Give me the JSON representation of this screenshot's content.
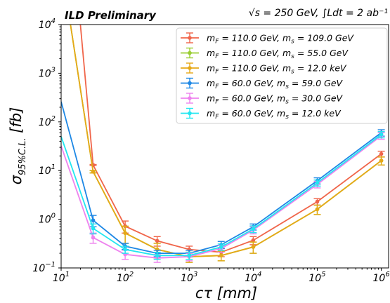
{
  "chart_data": {
    "type": "line",
    "title_left": "ILD Preliminary",
    "title_right": "√s = 250 GeV, ∫Ldt = 2 ab⁻¹",
    "xlabel": "cτ [mm]",
    "ylabel": "σ95%C.L. [fb]",
    "xscale": "log",
    "yscale": "log",
    "xlim": [
      10,
      1300000
    ],
    "ylim": [
      0.1,
      10000
    ],
    "x_ticks": [
      {
        "value": 10,
        "base": "10",
        "exp": "1"
      },
      {
        "value": 100,
        "base": "10",
        "exp": "2"
      },
      {
        "value": 1000,
        "base": "10",
        "exp": "3"
      },
      {
        "value": 10000,
        "base": "10",
        "exp": "4"
      },
      {
        "value": 100000,
        "base": "10",
        "exp": "5"
      },
      {
        "value": 1000000,
        "base": "10",
        "exp": "6"
      }
    ],
    "y_ticks": [
      {
        "value": 0.1,
        "base": "10",
        "exp": "−1"
      },
      {
        "value": 1,
        "base": "10",
        "exp": "0"
      },
      {
        "value": 10,
        "base": "10",
        "exp": "1"
      },
      {
        "value": 100,
        "base": "10",
        "exp": "2"
      },
      {
        "value": 1000,
        "base": "10",
        "exp": "3"
      },
      {
        "value": 10000,
        "base": "10",
        "exp": "4"
      }
    ],
    "legend_position": "top-right",
    "series": [
      {
        "name": "mF = 110.0 GeV, ms = 109.0 GeV",
        "mF": "110.0 GeV",
        "ms": "109.0 GeV",
        "color": "#f0654a",
        "x": [
          20,
          31.6,
          100,
          316,
          1000,
          3160,
          10000,
          100000,
          1000000
        ],
        "y": [
          10000,
          13,
          0.72,
          0.36,
          0.24,
          0.21,
          0.37,
          2.3,
          22
        ],
        "err": [
          0,
          0.35,
          0.2,
          0.08,
          0.04,
          0.04,
          0.07,
          0.35,
          3
        ]
      },
      {
        "name": "mF = 110.0 GeV, ms = 55.0 GeV",
        "mF": "110.0 GeV",
        "ms": "55.0 GeV",
        "color": "#9acd32",
        "x": [
          14,
          31.6,
          100,
          316,
          1000,
          3160,
          10000,
          100000,
          1000000
        ],
        "y": [
          10000,
          9.5,
          0.52,
          0.24,
          0.17,
          0.18,
          0.27,
          1.6,
          16
        ],
        "err": [
          0,
          0.5,
          0.2,
          0.08,
          0.04,
          0.04,
          0.07,
          0.35,
          3
        ]
      },
      {
        "name": "mF = 110.0 GeV, ms = 12.0 keV",
        "mF": "110.0 GeV",
        "ms": "12.0 keV",
        "color": "#e6a817",
        "x": [
          14,
          31.6,
          100,
          316,
          1000,
          3160,
          10000,
          100000,
          1000000
        ],
        "y": [
          10000,
          9.5,
          0.52,
          0.24,
          0.17,
          0.18,
          0.27,
          1.6,
          16
        ],
        "err": [
          0,
          0.6,
          0.2,
          0.08,
          0.04,
          0.04,
          0.07,
          0.35,
          3
        ]
      },
      {
        "name": "mF = 60.0 GeV, ms = 59.0 GeV",
        "mF": "60.0 GeV",
        "ms": "59.0 GeV",
        "color": "#1e88e5",
        "x": [
          10,
          31.6,
          100,
          316,
          1000,
          3160,
          10000,
          100000,
          1000000
        ],
        "y": [
          260,
          0.95,
          0.28,
          0.2,
          0.2,
          0.3,
          0.7,
          6.2,
          60
        ],
        "err": [
          0,
          0.25,
          0.04,
          0.03,
          0.03,
          0.05,
          0.1,
          0.9,
          9
        ]
      },
      {
        "name": "mF = 60.0 GeV, ms = 30.0 GeV",
        "mF": "60.0 GeV",
        "ms": "30.0 GeV",
        "color": "#ee82ee",
        "x": [
          10,
          31.6,
          100,
          316,
          1000,
          3160,
          10000,
          100000,
          1000000
        ],
        "y": [
          32,
          0.42,
          0.19,
          0.16,
          0.17,
          0.25,
          0.6,
          5.2,
          52
        ],
        "err": [
          0,
          0.1,
          0.04,
          0.03,
          0.03,
          0.04,
          0.1,
          0.8,
          8
        ]
      },
      {
        "name": "mF = 60.0 GeV, ms = 12.0 keV",
        "mF": "60.0 GeV",
        "ms": "12.0 keV",
        "color": "#22e6f0",
        "x": [
          10,
          31.6,
          100,
          316,
          1000,
          3160,
          10000,
          100000,
          1000000
        ],
        "y": [
          50,
          0.65,
          0.24,
          0.18,
          0.18,
          0.27,
          0.63,
          5.6,
          55
        ],
        "err": [
          0,
          0.15,
          0.04,
          0.03,
          0.03,
          0.04,
          0.1,
          0.8,
          8
        ]
      }
    ]
  }
}
